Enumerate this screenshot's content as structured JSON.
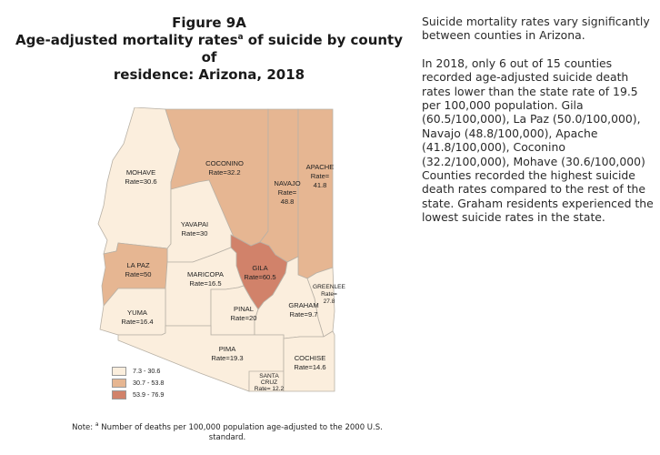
{
  "figure": {
    "label": "Figure 9A",
    "title_line1": "Age-adjusted mortality rates",
    "title_sup": "a",
    "title_line1_rest": " of suicide by county of",
    "title_line2": "residence:  Arizona, 2018"
  },
  "side_text": {
    "p1": "Suicide mortality rates vary significantly between counties in Arizona.",
    "p2": "In 2018, only 6 out of 15 counties recorded age-adjusted suicide death rates lower than the state rate of 19.5 per 100,000 population. Gila (60.5/100,000), La Paz (50.0/100,000), Navajo (48.8/100,000), Apache (41.8/100,000), Coconino (32.2/100,000), Mohave (30.6/100,000) Counties recorded the highest suicide death rates compared to the rest of the state. Graham residents experienced the lowest suicide rates in the state."
  },
  "counties": {
    "mohave": {
      "name": "MOHAVE",
      "rate": "Rate=30.6"
    },
    "coconino": {
      "name": "COCONINO",
      "rate": "Rate=32.2"
    },
    "navajo": {
      "name": "NAVAJO",
      "rate1": "Rate=",
      "rate2": "48.8"
    },
    "apache": {
      "name": "APACHE",
      "rate1": "Rate=",
      "rate2": "41.8"
    },
    "yavapai": {
      "name": "YAVAPAI",
      "rate": "Rate=30"
    },
    "lapaz": {
      "name": "LA PAZ",
      "rate": "Rate=50"
    },
    "gila": {
      "name": "GILA",
      "rate": "Rate=60.5"
    },
    "greenlee": {
      "name": "GREENLEE",
      "rate1": "Rate=",
      "rate2": "27.8"
    },
    "maricopa": {
      "name": "MARICOPA",
      "rate": "Rate=16.5"
    },
    "yuma": {
      "name": "YUMA",
      "rate": "Rate=16.4"
    },
    "pinal": {
      "name": "PINAL",
      "rate": "Rate=20"
    },
    "graham": {
      "name": "GRAHAM",
      "rate": "Rate=9.7"
    },
    "pima": {
      "name": "PIMA",
      "rate": "Rate=19.3"
    },
    "cochise": {
      "name": "COCHISE",
      "rate": "Rate=14.6"
    },
    "santacruz": {
      "name1": "SANTA",
      "name2": "CRUZ",
      "rate": "Rate= 12.2"
    }
  },
  "legend": [
    {
      "label": "7.3 - 30.6",
      "color": "#fbeedd"
    },
    {
      "label": "30.7 - 53.8",
      "color": "#e6b692"
    },
    {
      "label": "53.9 - 76.9",
      "color": "#d1826a"
    }
  ],
  "note": {
    "prefix": "Note: ",
    "sup": "a",
    "text": " Number of deaths per 100,000 population age-adjusted to the 2000 U.S. standard."
  }
}
